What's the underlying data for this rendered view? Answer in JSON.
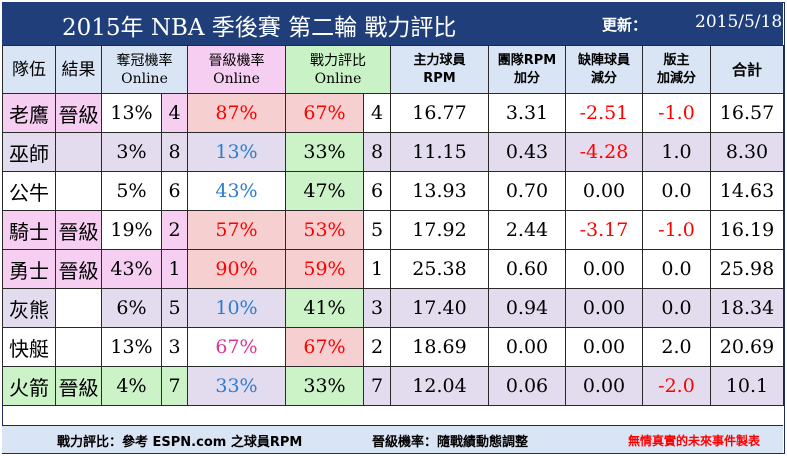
{
  "title": "2015年 NBA 季後賽 第二輪  戰力評比",
  "updated_label": "更新：",
  "updated_date": "2015/5/18",
  "headers": {
    "team": "隊伍",
    "result": "結果",
    "champ_prob": "奪冠機率",
    "advance_prob": "晉級機率",
    "power_rating": "戰力評比",
    "online": "Online",
    "main_rpm": "主力球員",
    "rpm": "RPM",
    "team_rpm": "團隊RPM",
    "team_rpm_sub": "加分",
    "injury": "缺陣球員",
    "injury_sub": "減分",
    "owner": "版主",
    "owner_sub": "加減分",
    "total": "合計"
  },
  "rows": [
    {
      "team": "老鷹",
      "result": "晉級",
      "champ": "13%",
      "champ_rank": "4",
      "adv": "87%",
      "power": "67%",
      "power_rank": "4",
      "rpm": "16.77",
      "team_rpm": "3.31",
      "injury": "-2.51",
      "owner": "-1.0",
      "total": "16.57"
    },
    {
      "team": "巫師",
      "result": "",
      "champ": "3%",
      "champ_rank": "8",
      "adv": "13%",
      "power": "33%",
      "power_rank": "8",
      "rpm": "11.15",
      "team_rpm": "0.43",
      "injury": "-4.28",
      "owner": "1.0",
      "total": "8.30"
    },
    {
      "team": "公牛",
      "result": "",
      "champ": "5%",
      "champ_rank": "6",
      "adv": "43%",
      "power": "47%",
      "power_rank": "6",
      "rpm": "13.93",
      "team_rpm": "0.70",
      "injury": "0.00",
      "owner": "0.0",
      "total": "14.63"
    },
    {
      "team": "騎士",
      "result": "晉級",
      "champ": "19%",
      "champ_rank": "2",
      "adv": "57%",
      "power": "53%",
      "power_rank": "5",
      "rpm": "17.92",
      "team_rpm": "2.44",
      "injury": "-3.17",
      "owner": "-1.0",
      "total": "16.19"
    },
    {
      "team": "勇士",
      "result": "晉級",
      "champ": "43%",
      "champ_rank": "1",
      "adv": "90%",
      "power": "59%",
      "power_rank": "1",
      "rpm": "25.38",
      "team_rpm": "0.60",
      "injury": "0.00",
      "owner": "0.0",
      "total": "25.98"
    },
    {
      "team": "灰熊",
      "result": "",
      "champ": "6%",
      "champ_rank": "5",
      "adv": "10%",
      "power": "41%",
      "power_rank": "3",
      "rpm": "17.40",
      "team_rpm": "0.94",
      "injury": "0.00",
      "owner": "0.0",
      "total": "18.34"
    },
    {
      "team": "快艇",
      "result": "",
      "champ": "13%",
      "champ_rank": "3",
      "adv": "67%",
      "power": "67%",
      "power_rank": "2",
      "rpm": "18.69",
      "team_rpm": "0.00",
      "injury": "0.00",
      "owner": "2.0",
      "total": "20.69"
    },
    {
      "team": "火箭",
      "result": "晉級",
      "champ": "4%",
      "champ_rank": "7",
      "adv": "33%",
      "power": "33%",
      "power_rank": "7",
      "rpm": "12.04",
      "team_rpm": "0.06",
      "injury": "0.00",
      "owner": "-2.0",
      "total": "10.1"
    }
  ],
  "footer": {
    "note1": "戰力評比：參考 ESPN.com 之球員RPM",
    "note2": "晉級機率：隨戰績動態調整",
    "credit": "無情真實的未來事件製表"
  },
  "colors": {
    "title_bar": "#1f3e7a",
    "header_bg": "#d9e4f4",
    "pink": "#f6cef2",
    "green": "#c9f2c6",
    "rose": "#f6d0d0",
    "lavender": "#e2dcee",
    "negative": "#ff0000",
    "low_prob": "#2e7bd0",
    "high_prob": "#e0358e"
  }
}
